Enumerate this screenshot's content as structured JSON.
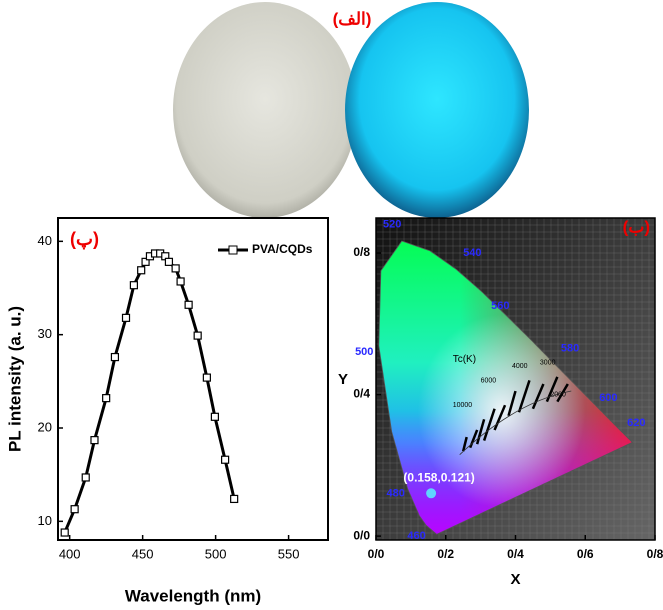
{
  "photo_label": "(الف)",
  "chart_data": [
    {
      "type": "line",
      "panel_label": "(پ)",
      "x_label": "Wavelength (nm)",
      "y_label": "PL intensity (a. u.)",
      "xlim": [
        392,
        577
      ],
      "ylim": [
        8,
        42.5
      ],
      "xticks": [
        400,
        450,
        500,
        550
      ],
      "yticks": [
        10,
        20,
        30,
        40
      ],
      "series": [
        {
          "name": "PVA/CQDs",
          "color": "#000000",
          "x": [
            396.6,
            403.4,
            411,
            417,
            425,
            431,
            438.6,
            444,
            449,
            452,
            455,
            458.5,
            462,
            465.5,
            468,
            472.6,
            476,
            481.5,
            487.7,
            494,
            499.5,
            506.5,
            512.7
          ],
          "values": [
            8.8,
            11.3,
            14.7,
            18.7,
            23.2,
            27.6,
            31.8,
            35.3,
            36.9,
            37.8,
            38.4,
            38.7,
            38.7,
            38.4,
            37.8,
            37.1,
            35.7,
            33.2,
            29.9,
            25.4,
            21.2,
            16.6,
            12.4
          ]
        }
      ]
    },
    {
      "type": "scatter",
      "panel_label": "(ب)",
      "x_label": "X",
      "y_label": "Y",
      "xlim": [
        0,
        0.8
      ],
      "ylim": [
        -0.011,
        0.899
      ],
      "xticks": [
        {
          "value": 0,
          "label": "0/0"
        },
        {
          "value": 0.2,
          "label": "0/2"
        },
        {
          "value": 0.4,
          "label": "0/4"
        },
        {
          "value": 0.6,
          "label": "0/6"
        },
        {
          "value": 0.8,
          "label": "0/8"
        }
      ],
      "yticks": [
        {
          "value": 0,
          "label": "0/0"
        },
        {
          "value": 0.4,
          "label": "0/4"
        },
        {
          "value": 0.8,
          "label": "0/8"
        }
      ],
      "locus_labels": [
        "460",
        "480",
        "500",
        "520",
        "540",
        "560",
        "580",
        "600",
        "620"
      ],
      "planck_labels": [
        "Tc(K)",
        "10000",
        "6000",
        "4000",
        "3000",
        "2000"
      ],
      "series": [
        {
          "color": "#5fd4ff",
          "x": [
            0.158
          ],
          "values": [
            0.121
          ],
          "value_labels": [
            "(0.158,0.121)"
          ]
        }
      ]
    }
  ]
}
